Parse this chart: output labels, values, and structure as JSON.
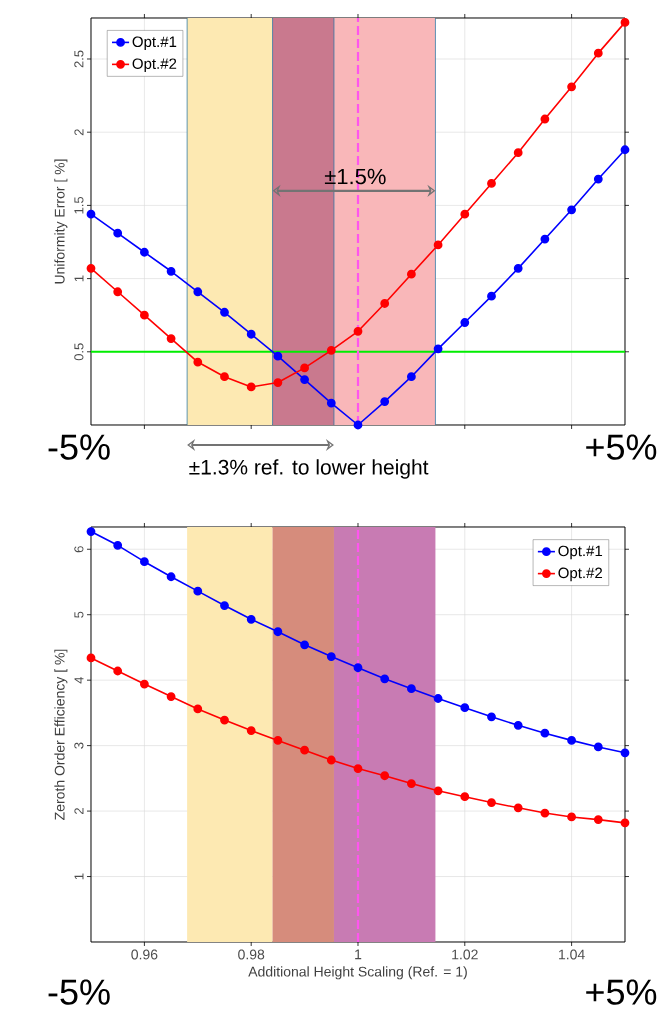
{
  "chart_data": [
    {
      "type": "line",
      "ylabel": "Uniformity Error [ %]",
      "xlim": [
        0.95,
        1.05
      ],
      "ylim": [
        0,
        2.78
      ],
      "xticks": [
        0.96,
        0.98,
        1,
        1.02,
        1.04
      ],
      "yticks": [
        0.5,
        1,
        1.5,
        2,
        2.5
      ],
      "tick_labels": "y",
      "grid": true,
      "legend": "top left",
      "marker": "circle",
      "x": [
        0.95,
        0.955,
        0.96,
        0.965,
        0.97,
        0.975,
        0.98,
        0.985,
        0.99,
        0.995,
        1,
        1.005,
        1.01,
        1.015,
        1.02,
        1.025,
        1.03,
        1.035,
        1.04,
        1.045,
        1.05
      ],
      "series": [
        {
          "name": "Opt.#1",
          "color": "#0000ff",
          "values": [
            1.44,
            1.31,
            1.18,
            1.05,
            0.91,
            0.77,
            0.62,
            0.47,
            0.31,
            0.15,
            0,
            0.16,
            0.33,
            0.52,
            0.7,
            0.88,
            1.07,
            1.27,
            1.47,
            1.68,
            1.88
          ]
        },
        {
          "name": "Opt.#2",
          "color": "#ff0000",
          "values": [
            1.07,
            0.91,
            0.75,
            0.59,
            0.43,
            0.33,
            0.26,
            0.29,
            0.39,
            0.51,
            0.64,
            0.83,
            1.03,
            1.23,
            1.44,
            1.65,
            1.86,
            2.09,
            2.31,
            2.54,
            2.75
          ]
        }
      ],
      "ref_lines": [
        {
          "axis": "y",
          "value": 0.5,
          "color": "#00ee00",
          "line_style": "solid"
        },
        {
          "axis": "x",
          "value": 1,
          "color": "#ff55ee",
          "line_style": "dashed"
        },
        {
          "axis": "x",
          "value": 0.968,
          "color": "#1a6fa0",
          "line_style": "solid"
        },
        {
          "axis": "x",
          "value": 0.984,
          "color": "#1a6fa0",
          "line_style": "solid"
        },
        {
          "axis": "x",
          "value": 0.9955,
          "color": "#1a6fa0",
          "line_style": "solid"
        },
        {
          "axis": "x",
          "value": 1.0145,
          "color": "#1a6fa0",
          "line_style": "solid"
        }
      ],
      "bands": [
        {
          "axis": "x",
          "from": 0.968,
          "to": 0.984,
          "color": "#fde9b2"
        },
        {
          "axis": "x",
          "from": 0.984,
          "to": 0.9955,
          "color": "#c9798e"
        },
        {
          "axis": "x",
          "from": 0.9955,
          "to": 1.0145,
          "color": "#f9b7b9"
        }
      ],
      "annotations": [
        {
          "text": "±1.5%",
          "x": 0.9995,
          "y": 1.62
        },
        "±1.3% ref. to lower height",
        "-5%",
        "+5%"
      ]
    },
    {
      "type": "line",
      "xlabel": "Additional Height Scaling (Ref. = 1)",
      "ylabel": "Zeroth Order Efficiency [ %]",
      "xlim": [
        0.95,
        1.05
      ],
      "ylim": [
        0,
        6.34
      ],
      "xticks": [
        0.96,
        0.98,
        1,
        1.02,
        1.04
      ],
      "yticks": [
        1,
        2,
        3,
        4,
        5,
        6
      ],
      "grid": true,
      "legend": "top right",
      "marker": "circle",
      "x": [
        0.95,
        0.955,
        0.96,
        0.965,
        0.97,
        0.975,
        0.98,
        0.985,
        0.99,
        0.995,
        1,
        1.005,
        1.01,
        1.015,
        1.02,
        1.025,
        1.03,
        1.035,
        1.04,
        1.045,
        1.05
      ],
      "series": [
        {
          "name": "Opt.#1",
          "color": "#0000ff",
          "values": [
            6.27,
            6.06,
            5.81,
            5.58,
            5.36,
            5.14,
            4.93,
            4.74,
            4.54,
            4.36,
            4.19,
            4.02,
            3.87,
            3.72,
            3.58,
            3.44,
            3.31,
            3.19,
            3.08,
            2.98,
            2.89
          ]
        },
        {
          "name": "Opt.#2",
          "color": "#ff0000",
          "values": [
            4.34,
            4.14,
            3.94,
            3.75,
            3.56,
            3.39,
            3.23,
            3.08,
            2.93,
            2.78,
            2.65,
            2.54,
            2.42,
            2.31,
            2.22,
            2.13,
            2.05,
            1.97,
            1.91,
            1.87,
            1.82
          ]
        }
      ],
      "ref_lines": [
        {
          "axis": "x",
          "value": 1,
          "color": "#ff55ee",
          "line_style": "dashed"
        }
      ],
      "bands": [
        {
          "axis": "x",
          "from": 0.968,
          "to": 0.984,
          "color": "#fde9b2"
        },
        {
          "axis": "x",
          "from": 0.984,
          "to": 0.9955,
          "color": "#d68c7c"
        },
        {
          "axis": "x",
          "from": 0.9955,
          "to": 1.0145,
          "color": "#c87bb3"
        }
      ],
      "annotations": [
        "-5%",
        "+5%"
      ]
    }
  ]
}
